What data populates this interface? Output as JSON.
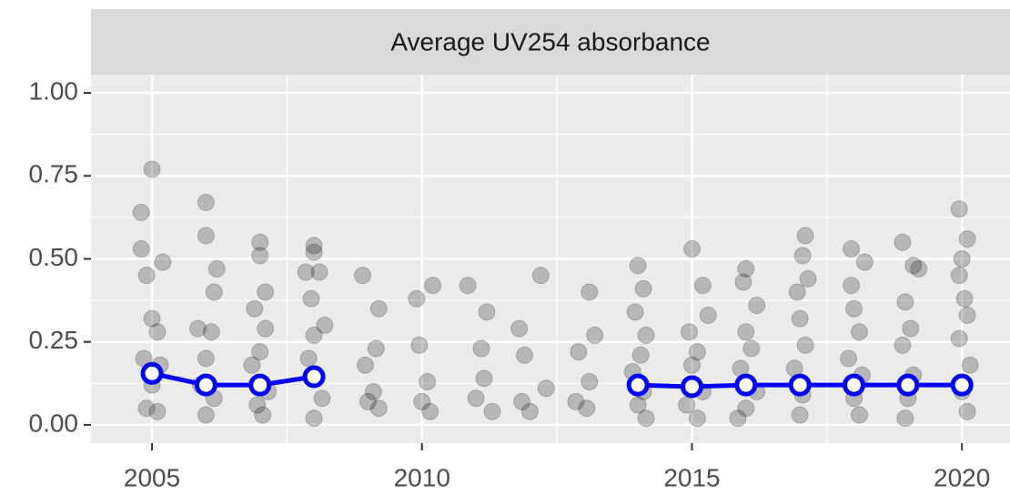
{
  "chart_data": {
    "type": "scatter",
    "title": "Average UV254 absorbance",
    "xlim": [
      2003.87,
      2020.89
    ],
    "xticks": [
      2005,
      2010,
      2015,
      2020
    ],
    "ylim": [
      -0.055,
      1.055
    ],
    "yticks": [
      {
        "value": 0,
        "label": "0.00"
      },
      {
        "value": 0.25,
        "label": "0.25"
      },
      {
        "value": 0.5,
        "label": "0.50"
      },
      {
        "value": 0.75,
        "label": "0.75"
      },
      {
        "value": 1,
        "label": "1.00"
      }
    ],
    "x_minor_grid": [
      2007.5,
      2012.5,
      2017.5
    ],
    "y_minor_grid": [
      0.125,
      0.375,
      0.625,
      0.875
    ],
    "grid": true,
    "series": [
      {
        "type": "scatter",
        "color": "#000000",
        "alpha": 0.22,
        "x": [
          2004.8,
          2005.0,
          2004.8,
          2005.2,
          2004.9,
          2005.0,
          2005.1,
          2004.85,
          2005.15,
          2005.0,
          2004.9,
          2005.1,
          2006.0,
          2006.0,
          2006.2,
          2006.15,
          2005.85,
          2006.1,
          2006.0,
          2005.9,
          2006.15,
          2006.0,
          2007.0,
          2007.0,
          2007.1,
          2006.9,
          2007.1,
          2007.0,
          2006.85,
          2007.15,
          2006.95,
          2007.05,
          2008.0,
          2008.0,
          2008.1,
          2007.85,
          2007.95,
          2008.2,
          2008.0,
          2007.9,
          2008.15,
          2008.0,
          2008.9,
          2009.2,
          2008.95,
          2009.15,
          2009.1,
          2009.0,
          2009.2,
          2009.9,
          2010.2,
          2009.95,
          2010.1,
          2010.0,
          2010.15,
          2010.85,
          2011.2,
          2011.1,
          2011.15,
          2011.0,
          2011.3,
          2011.8,
          2012.2,
          2011.9,
          2012.3,
          2011.85,
          2012.0,
          2013.1,
          2013.2,
          2012.9,
          2013.1,
          2012.85,
          2013.05,
          2014.0,
          2014.1,
          2013.95,
          2014.15,
          2014.05,
          2013.9,
          2014.1,
          2014.0,
          2014.15,
          2015.0,
          2015.2,
          2015.3,
          2014.95,
          2015.1,
          2015.0,
          2015.2,
          2014.9,
          2015.1,
          2016.0,
          2015.95,
          2016.2,
          2016.0,
          2016.1,
          2015.9,
          2016.2,
          2016.0,
          2015.85,
          2017.1,
          2017.05,
          2017.15,
          2016.95,
          2017.0,
          2017.1,
          2016.9,
          2017.05,
          2017.0,
          2017.95,
          2018.2,
          2017.95,
          2018.0,
          2018.1,
          2017.9,
          2018.15,
          2018.0,
          2018.1,
          2018.9,
          2019.1,
          2019.2,
          2018.95,
          2019.05,
          2018.9,
          2019.1,
          2019.0,
          2018.95,
          2019.95,
          2020.1,
          2020.0,
          2019.95,
          2020.05,
          2020.1,
          2019.95,
          2020.15,
          2020.0,
          2020.1
        ],
        "values": [
          0.64,
          0.77,
          0.53,
          0.49,
          0.45,
          0.32,
          0.28,
          0.2,
          0.18,
          0.12,
          0.05,
          0.04,
          0.67,
          0.57,
          0.47,
          0.4,
          0.29,
          0.28,
          0.2,
          0.12,
          0.08,
          0.03,
          0.55,
          0.51,
          0.4,
          0.35,
          0.29,
          0.22,
          0.18,
          0.1,
          0.06,
          0.03,
          0.54,
          0.52,
          0.46,
          0.46,
          0.38,
          0.3,
          0.27,
          0.2,
          0.08,
          0.02,
          0.45,
          0.35,
          0.18,
          0.23,
          0.1,
          0.07,
          0.05,
          0.38,
          0.42,
          0.24,
          0.13,
          0.07,
          0.04,
          0.42,
          0.34,
          0.23,
          0.14,
          0.08,
          0.04,
          0.29,
          0.45,
          0.21,
          0.11,
          0.07,
          0.04,
          0.4,
          0.27,
          0.22,
          0.13,
          0.07,
          0.05,
          0.48,
          0.41,
          0.34,
          0.27,
          0.21,
          0.16,
          0.1,
          0.06,
          0.02,
          0.53,
          0.42,
          0.33,
          0.28,
          0.22,
          0.18,
          0.1,
          0.06,
          0.02,
          0.47,
          0.43,
          0.36,
          0.28,
          0.23,
          0.17,
          0.1,
          0.05,
          0.02,
          0.57,
          0.51,
          0.44,
          0.4,
          0.32,
          0.24,
          0.17,
          0.09,
          0.03,
          0.53,
          0.49,
          0.42,
          0.35,
          0.28,
          0.2,
          0.15,
          0.08,
          0.03,
          0.55,
          0.48,
          0.47,
          0.37,
          0.29,
          0.24,
          0.15,
          0.08,
          0.02,
          0.65,
          0.56,
          0.5,
          0.45,
          0.38,
          0.33,
          0.26,
          0.18,
          0.1,
          0.04
        ]
      },
      {
        "type": "line",
        "color": "#0000ff",
        "x": [
          2005,
          2006,
          2007,
          2008,
          2009,
          2010,
          2011,
          2012,
          2013,
          2014,
          2015,
          2016,
          2017,
          2018,
          2019,
          2020
        ],
        "values": [
          0.155,
          0.12,
          0.12,
          0.145,
          null,
          null,
          null,
          null,
          null,
          0.12,
          0.115,
          0.12,
          0.12,
          0.12,
          0.12,
          0.12
        ]
      }
    ]
  }
}
